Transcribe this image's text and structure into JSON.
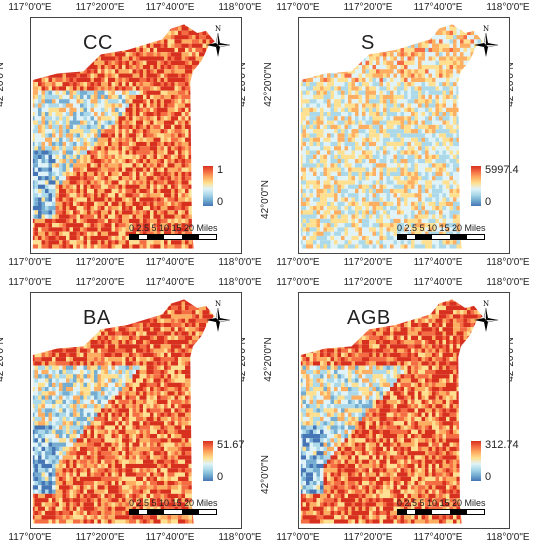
{
  "longitude_ticks": [
    "117°0'0\"E",
    "117°20'0\"E",
    "117°40'0\"E",
    "118°0'0\"E"
  ],
  "latitude_ticks": [
    "42°20'0\"N",
    "42°0'0\"N"
  ],
  "north_label": "N",
  "scale": {
    "labels": [
      "0",
      "2.5",
      "5",
      "10",
      "15",
      "20"
    ],
    "unit": "Miles"
  },
  "panels": [
    {
      "title": "CC",
      "legend_max": "1",
      "legend_min": "0",
      "palette": "cc"
    },
    {
      "title": "S",
      "legend_max": "5997.4",
      "legend_min": "0",
      "palette": "s"
    },
    {
      "title": "BA",
      "legend_max": "51.67",
      "legend_min": "0",
      "palette": "ba"
    },
    {
      "title": "AGB",
      "legend_max": "312.74",
      "legend_min": "0",
      "palette": "agb"
    }
  ],
  "colors": {
    "high": "#d7301f",
    "mid": "#fee090",
    "low": "#4575b4"
  }
}
